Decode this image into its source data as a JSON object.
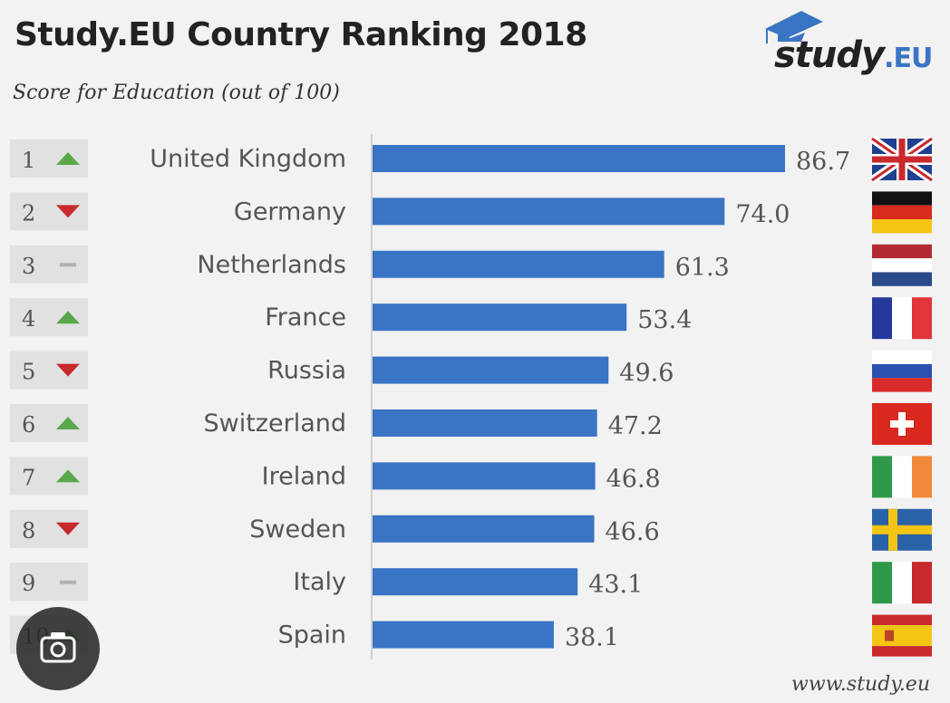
{
  "header": {
    "title": "Study.EU Country Ranking 2018",
    "subtitle": "Score for Education (out of 100)"
  },
  "logo": {
    "brand": "study",
    "suffix": ".EU"
  },
  "footer": {
    "source": "www.study.eu"
  },
  "colors": {
    "bar": "#3a74c4",
    "up": "#5aa84b",
    "down": "#c8292c",
    "same": "#b0b0b0",
    "rank_box": "#e1e1e1"
  },
  "chart_data": {
    "type": "bar",
    "orientation": "horizontal",
    "title": "Study.EU Country Ranking 2018",
    "subtitle": "Score for Education (out of 100)",
    "xlim": [
      0,
      100
    ],
    "categories": [
      "United Kingdom",
      "Germany",
      "Netherlands",
      "France",
      "Russia",
      "Switzerland",
      "Ireland",
      "Sweden",
      "Italy",
      "Spain"
    ],
    "values": [
      86.7,
      74.0,
      61.3,
      53.4,
      49.6,
      47.2,
      46.8,
      46.6,
      43.1,
      38.1
    ],
    "value_labels": [
      "86.7",
      "74.0",
      "61.3",
      "53.4",
      "49.6",
      "47.2",
      "46.8",
      "46.6",
      "43.1",
      "38.1"
    ],
    "ranks": [
      "1",
      "2",
      "3",
      "4",
      "5",
      "6",
      "7",
      "8",
      "9",
      "10"
    ],
    "trend": [
      "up",
      "down",
      "same",
      "up",
      "down",
      "up",
      "up",
      "down",
      "same",
      "up"
    ],
    "flags": [
      "uk-flag",
      "germany-flag",
      "netherlands-flag",
      "france-flag",
      "russia-flag",
      "switzerland-flag",
      "ireland-flag",
      "sweden-flag",
      "italy-flag",
      "spain-flag"
    ]
  }
}
